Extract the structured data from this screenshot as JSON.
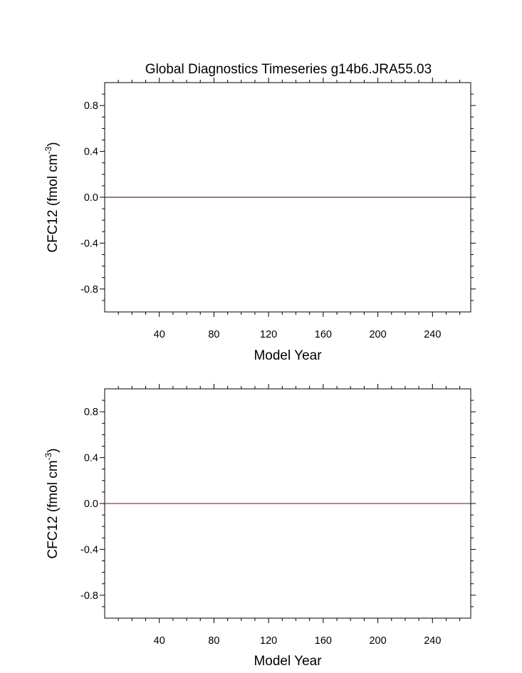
{
  "chart_data": [
    {
      "type": "line",
      "title": "Global Diagnostics Timeseries g14b6.JRA55.03",
      "xlabel": "Model Year",
      "ylabel_main": "CFC12 (fmol cm",
      "ylabel_sup": "-3",
      "ylabel_close": ")",
      "xlim": [
        0,
        268
      ],
      "ylim": [
        -1,
        1
      ],
      "x_ticks": [
        "40",
        "80",
        "120",
        "160",
        "200",
        "240"
      ],
      "y_ticks": [
        "0.8",
        "0.4",
        "0.0",
        "-0.4",
        "-0.8"
      ],
      "series": [
        {
          "x": [
            0,
            268
          ],
          "y": [
            0,
            0
          ],
          "color": "#5a2d2d"
        }
      ]
    },
    {
      "type": "line",
      "title": "",
      "xlabel": "Model Year",
      "ylabel_main": "CFC12 (fmol cm",
      "ylabel_sup": "-3",
      "ylabel_close": ")",
      "xlim": [
        0,
        268
      ],
      "ylim": [
        -1,
        1
      ],
      "x_ticks": [
        "40",
        "80",
        "120",
        "160",
        "200",
        "240"
      ],
      "y_ticks": [
        "0.8",
        "0.4",
        "0.0",
        "-0.4",
        "-0.8"
      ],
      "series": [
        {
          "x": [
            0,
            268
          ],
          "y": [
            0,
            0
          ],
          "color": "#8b3a3a"
        }
      ]
    }
  ]
}
